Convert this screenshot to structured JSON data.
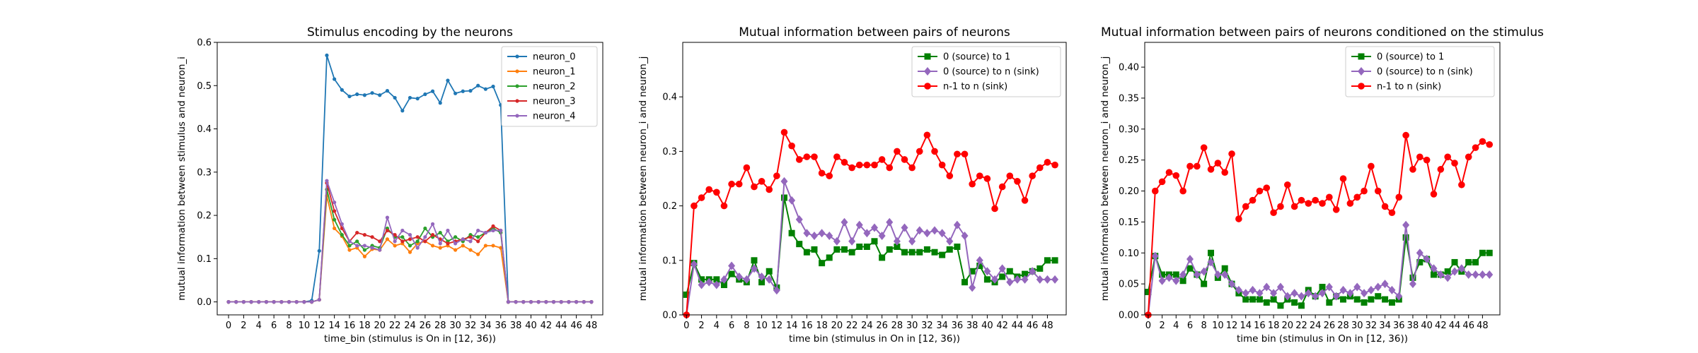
{
  "chart_data": [
    {
      "type": "line",
      "title": "Stimulus encoding by the neurons",
      "xlabel": "time_bin (stimulus is On in [12, 36))",
      "ylabel": "mutual information between stimulus and neuron_i",
      "xlim": [
        -1.5,
        49.5
      ],
      "ylim": [
        -0.03,
        0.6
      ],
      "xticks": [
        0,
        2,
        4,
        6,
        8,
        10,
        12,
        14,
        16,
        18,
        20,
        22,
        24,
        26,
        28,
        30,
        32,
        34,
        36,
        38,
        40,
        42,
        44,
        46,
        48
      ],
      "yticks": [
        0.0,
        0.1,
        0.2,
        0.3,
        0.4,
        0.5,
        0.6
      ],
      "legend": "top-right",
      "x": [
        0,
        1,
        2,
        3,
        4,
        5,
        6,
        7,
        8,
        9,
        10,
        11,
        12,
        13,
        14,
        15,
        16,
        17,
        18,
        19,
        20,
        21,
        22,
        23,
        24,
        25,
        26,
        27,
        28,
        29,
        30,
        31,
        32,
        33,
        34,
        35,
        36,
        37,
        38,
        39,
        40,
        41,
        42,
        43,
        44,
        45,
        46,
        47,
        48
      ],
      "series": [
        {
          "name": "neuron_0",
          "color": "#1f77b4",
          "marker": "dot",
          "values": [
            0,
            0,
            0,
            0,
            0,
            0,
            0,
            0,
            0,
            0,
            0,
            0.003,
            0.118,
            0.57,
            0.515,
            0.49,
            0.475,
            0.48,
            0.478,
            0.483,
            0.478,
            0.488,
            0.472,
            0.442,
            0.472,
            0.47,
            0.48,
            0.487,
            0.46,
            0.512,
            0.482,
            0.487,
            0.488,
            0.5,
            0.492,
            0.498,
            0.455,
            0,
            0,
            0,
            0,
            0,
            0,
            0,
            0,
            0,
            0,
            0,
            0
          ]
        },
        {
          "name": "neuron_1",
          "color": "#ff7f0e",
          "marker": "dot",
          "values": [
            0,
            0,
            0,
            0,
            0,
            0,
            0,
            0,
            0,
            0,
            0,
            0,
            0.005,
            0.245,
            0.17,
            0.152,
            0.12,
            0.125,
            0.105,
            0.122,
            0.12,
            0.145,
            0.13,
            0.135,
            0.115,
            0.135,
            0.14,
            0.13,
            0.125,
            0.13,
            0.12,
            0.13,
            0.12,
            0.11,
            0.13,
            0.13,
            0.125,
            0,
            0,
            0,
            0,
            0,
            0,
            0,
            0,
            0,
            0,
            0,
            0
          ]
        },
        {
          "name": "neuron_2",
          "color": "#2ca02c",
          "marker": "dot",
          "values": [
            0,
            0,
            0,
            0,
            0,
            0,
            0,
            0,
            0,
            0,
            0,
            0,
            0.005,
            0.26,
            0.19,
            0.155,
            0.13,
            0.14,
            0.12,
            0.13,
            0.125,
            0.17,
            0.15,
            0.15,
            0.13,
            0.14,
            0.17,
            0.15,
            0.16,
            0.14,
            0.15,
            0.14,
            0.155,
            0.15,
            0.16,
            0.17,
            0.16,
            0,
            0,
            0,
            0,
            0,
            0,
            0,
            0,
            0,
            0,
            0,
            0
          ]
        },
        {
          "name": "neuron_3",
          "color": "#d62728",
          "marker": "dot",
          "values": [
            0,
            0,
            0,
            0,
            0,
            0,
            0,
            0,
            0,
            0,
            0,
            0,
            0.005,
            0.275,
            0.21,
            0.17,
            0.14,
            0.16,
            0.155,
            0.15,
            0.14,
            0.165,
            0.155,
            0.14,
            0.145,
            0.15,
            0.14,
            0.155,
            0.145,
            0.135,
            0.14,
            0.145,
            0.15,
            0.14,
            0.16,
            0.175,
            0.165,
            0,
            0,
            0,
            0,
            0,
            0,
            0,
            0,
            0,
            0,
            0,
            0
          ]
        },
        {
          "name": "neuron_4",
          "color": "#9467bd",
          "marker": "dot",
          "values": [
            0,
            0,
            0,
            0,
            0,
            0,
            0,
            0,
            0,
            0,
            0,
            0,
            0.005,
            0.28,
            0.23,
            0.18,
            0.14,
            0.13,
            0.13,
            0.125,
            0.12,
            0.195,
            0.14,
            0.165,
            0.155,
            0.125,
            0.15,
            0.18,
            0.135,
            0.165,
            0.135,
            0.145,
            0.14,
            0.165,
            0.16,
            0.165,
            0.165,
            0,
            0,
            0,
            0,
            0,
            0,
            0,
            0,
            0,
            0,
            0,
            0
          ]
        }
      ]
    },
    {
      "type": "line",
      "title": "Mutual information between pairs of neurons",
      "xlabel": "time bin (stimulus in On in [12, 36))",
      "ylabel": "mutual information between neuron_i and neuron_j",
      "xlim": [
        -0.5,
        50.5
      ],
      "ylim": [
        0.0,
        0.5
      ],
      "xticks": [
        0,
        2,
        4,
        6,
        8,
        10,
        12,
        14,
        16,
        18,
        20,
        22,
        24,
        26,
        28,
        30,
        32,
        34,
        36,
        38,
        40,
        42,
        44,
        46,
        48
      ],
      "yticks": [
        0.0,
        0.1,
        0.2,
        0.3,
        0.4
      ],
      "legend": "top-right",
      "x": [
        0,
        1,
        2,
        3,
        4,
        5,
        6,
        7,
        8,
        9,
        10,
        11,
        12,
        13,
        14,
        15,
        16,
        17,
        18,
        19,
        20,
        21,
        22,
        23,
        24,
        25,
        26,
        27,
        28,
        29,
        30,
        31,
        32,
        33,
        34,
        35,
        36,
        37,
        38,
        39,
        40,
        41,
        42,
        43,
        44,
        45,
        46,
        47,
        48,
        49
      ],
      "series": [
        {
          "name": "0 (source) to 1",
          "color": "#008000",
          "marker": "square",
          "values": [
            0.037,
            0.095,
            0.065,
            0.065,
            0.065,
            0.055,
            0.075,
            0.065,
            0.06,
            0.1,
            0.06,
            0.08,
            0.05,
            0.215,
            0.15,
            0.13,
            0.115,
            0.12,
            0.095,
            0.105,
            0.12,
            0.12,
            0.115,
            0.125,
            0.125,
            0.135,
            0.105,
            0.12,
            0.125,
            0.115,
            0.115,
            0.115,
            0.12,
            0.115,
            0.11,
            0.12,
            0.125,
            0.06,
            0.08,
            0.09,
            0.065,
            0.06,
            0.07,
            0.08,
            0.07,
            0.075,
            0.08,
            0.085,
            0.1,
            0.1
          ]
        },
        {
          "name": "0 (source) to n (sink)",
          "color": "#9467bd",
          "marker": "diamond",
          "values": [
            0.0,
            0.093,
            0.055,
            0.06,
            0.055,
            0.065,
            0.09,
            0.07,
            0.065,
            0.085,
            0.07,
            0.065,
            0.045,
            0.245,
            0.21,
            0.175,
            0.15,
            0.145,
            0.15,
            0.145,
            0.135,
            0.17,
            0.135,
            0.165,
            0.15,
            0.16,
            0.145,
            0.17,
            0.135,
            0.16,
            0.135,
            0.155,
            0.15,
            0.155,
            0.15,
            0.135,
            0.165,
            0.145,
            0.05,
            0.1,
            0.08,
            0.065,
            0.085,
            0.06,
            0.065,
            0.065,
            0.08,
            0.065,
            0.065,
            0.065
          ]
        },
        {
          "name": "n-1 to n (sink)",
          "color": "#ff0000",
          "marker": "dot",
          "values": [
            0.0,
            0.2,
            0.215,
            0.23,
            0.225,
            0.2,
            0.24,
            0.24,
            0.27,
            0.235,
            0.245,
            0.23,
            0.255,
            0.335,
            0.31,
            0.285,
            0.29,
            0.29,
            0.26,
            0.255,
            0.29,
            0.28,
            0.27,
            0.275,
            0.275,
            0.275,
            0.285,
            0.27,
            0.3,
            0.285,
            0.27,
            0.3,
            0.33,
            0.3,
            0.275,
            0.255,
            0.295,
            0.295,
            0.24,
            0.255,
            0.25,
            0.195,
            0.235,
            0.255,
            0.245,
            0.21,
            0.255,
            0.27,
            0.28,
            0.275
          ]
        }
      ]
    },
    {
      "type": "line",
      "title": "Mutual information between pairs of neurons conditioned on the stimulus",
      "xlabel": "time bin (stimulus in On in [12, 36))",
      "ylabel": "mutual information between neuron_i and neuron_j",
      "xlim": [
        -0.5,
        50.5
      ],
      "ylim": [
        0.0,
        0.44
      ],
      "xticks": [
        0,
        2,
        4,
        6,
        8,
        10,
        12,
        14,
        16,
        18,
        20,
        22,
        24,
        26,
        28,
        30,
        32,
        34,
        36,
        38,
        40,
        42,
        44,
        46,
        48
      ],
      "yticks": [
        0.0,
        0.05,
        0.1,
        0.15,
        0.2,
        0.25,
        0.3,
        0.35,
        0.4
      ],
      "legend": "top-right",
      "x": [
        0,
        1,
        2,
        3,
        4,
        5,
        6,
        7,
        8,
        9,
        10,
        11,
        12,
        13,
        14,
        15,
        16,
        17,
        18,
        19,
        20,
        21,
        22,
        23,
        24,
        25,
        26,
        27,
        28,
        29,
        30,
        31,
        32,
        33,
        34,
        35,
        36,
        37,
        38,
        39,
        40,
        41,
        42,
        43,
        44,
        45,
        46,
        47,
        48,
        49
      ],
      "series": [
        {
          "name": "0 (source) to 1",
          "color": "#008000",
          "marker": "square",
          "values": [
            0.037,
            0.095,
            0.065,
            0.065,
            0.065,
            0.055,
            0.075,
            0.065,
            0.05,
            0.1,
            0.06,
            0.075,
            0.05,
            0.035,
            0.025,
            0.025,
            0.025,
            0.02,
            0.025,
            0.015,
            0.025,
            0.02,
            0.015,
            0.04,
            0.03,
            0.045,
            0.02,
            0.03,
            0.025,
            0.03,
            0.025,
            0.02,
            0.025,
            0.03,
            0.025,
            0.02,
            0.025,
            0.125,
            0.06,
            0.085,
            0.09,
            0.065,
            0.065,
            0.07,
            0.085,
            0.07,
            0.085,
            0.085,
            0.1,
            0.1
          ]
        },
        {
          "name": "0 (source) to n (sink)",
          "color": "#9467bd",
          "marker": "diamond",
          "values": [
            0.0,
            0.095,
            0.055,
            0.06,
            0.055,
            0.065,
            0.09,
            0.065,
            0.07,
            0.085,
            0.065,
            0.065,
            0.05,
            0.04,
            0.035,
            0.04,
            0.035,
            0.045,
            0.035,
            0.045,
            0.03,
            0.035,
            0.03,
            0.035,
            0.03,
            0.035,
            0.045,
            0.03,
            0.04,
            0.035,
            0.045,
            0.035,
            0.04,
            0.045,
            0.05,
            0.04,
            0.03,
            0.145,
            0.05,
            0.1,
            0.09,
            0.075,
            0.065,
            0.06,
            0.07,
            0.075,
            0.065,
            0.065,
            0.065,
            0.065
          ]
        },
        {
          "name": "n-1 to n (sink)",
          "color": "#ff0000",
          "marker": "dot",
          "values": [
            0.0,
            0.2,
            0.215,
            0.23,
            0.225,
            0.2,
            0.24,
            0.24,
            0.27,
            0.235,
            0.245,
            0.23,
            0.26,
            0.155,
            0.175,
            0.185,
            0.2,
            0.205,
            0.165,
            0.175,
            0.21,
            0.175,
            0.185,
            0.18,
            0.185,
            0.18,
            0.19,
            0.17,
            0.22,
            0.18,
            0.19,
            0.2,
            0.24,
            0.2,
            0.175,
            0.165,
            0.19,
            0.29,
            0.235,
            0.255,
            0.25,
            0.195,
            0.235,
            0.255,
            0.245,
            0.21,
            0.255,
            0.27,
            0.28,
            0.275
          ]
        }
      ]
    }
  ]
}
